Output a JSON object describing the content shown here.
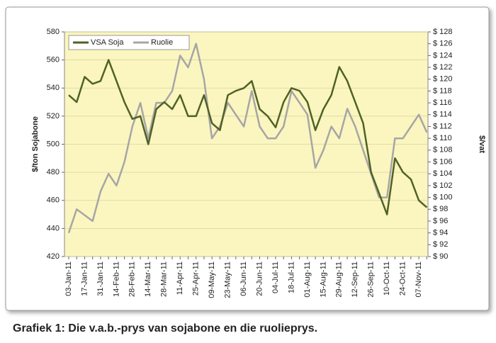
{
  "chart_data": {
    "type": "line",
    "caption": "Grafiek 1: Die v.a.b.-prys van sojabone en die ruolieprys.",
    "ylabel": "$/ton Sojabone",
    "y2label": "$/vat",
    "categories": [
      "03-Jan-11",
      null,
      "17-Jan-11",
      null,
      "31-Jan-11",
      null,
      "14-Feb-11",
      null,
      "28-Feb-11",
      null,
      "14-Mar-11",
      null,
      "28-Mar-11",
      null,
      "11-Apr-11",
      null,
      "25-Apr-11",
      null,
      "09-May-11",
      null,
      "23-May-11",
      null,
      "06-Jun-11",
      null,
      "20-Jun-11",
      null,
      "04-Jul-11",
      null,
      "18-Jul-11",
      null,
      "01-Aug-11",
      null,
      "15-Aug-11",
      null,
      "29-Aug-11",
      null,
      "12-Sep-11",
      null,
      "26-Sep-11",
      null,
      "10-Oct-11",
      null,
      "24-Oct-11",
      null,
      "07-Nov-11",
      null
    ],
    "series": [
      {
        "name": "VSA Soja",
        "color": "#4f6228",
        "values": [
          535,
          530,
          548,
          543,
          545,
          560,
          545,
          530,
          518,
          520,
          500,
          525,
          530,
          525,
          535,
          520,
          520,
          535,
          515,
          510,
          535,
          538,
          540,
          545,
          525,
          520,
          512,
          530,
          540,
          538,
          530,
          510,
          525,
          535,
          555,
          545,
          530,
          515,
          480,
          465,
          450,
          490,
          480,
          475,
          460,
          455
        ]
      },
      {
        "name": "Ruolie",
        "color": "#a6a6a6",
        "axis": "y2",
        "values": [
          94,
          98,
          97,
          96,
          101,
          104,
          102,
          106,
          112,
          116,
          110,
          116,
          116,
          118,
          124,
          122,
          126,
          120,
          110,
          112,
          116,
          114,
          112,
          118,
          112,
          110,
          110,
          112,
          118,
          116,
          114,
          105,
          108,
          112,
          110,
          115,
          112,
          108,
          104,
          100,
          100,
          110,
          110,
          112,
          114,
          111
        ]
      }
    ],
    "ylim": [
      420,
      580
    ],
    "yticks": [
      420,
      440,
      460,
      480,
      500,
      520,
      540,
      560,
      580
    ],
    "y2lim": [
      90,
      128
    ],
    "y2ticks": [
      {
        "value": 90,
        "label": "$ 90"
      },
      {
        "value": 92,
        "label": "$ 92"
      },
      {
        "value": 94,
        "label": "$ 94"
      },
      {
        "value": 96,
        "label": "$ 96"
      },
      {
        "value": 98,
        "label": "$ 98"
      },
      {
        "value": 100,
        "label": "$ 100"
      },
      {
        "value": 102,
        "label": "$ 102"
      },
      {
        "value": 104,
        "label": "$ 104"
      },
      {
        "value": 106,
        "label": "$ 106"
      },
      {
        "value": 108,
        "label": "$ 108"
      },
      {
        "value": 110,
        "label": "$ 110"
      },
      {
        "value": 112,
        "label": "$ 112"
      },
      {
        "value": 114,
        "label": "$ 114"
      },
      {
        "value": 116,
        "label": "$ 116"
      },
      {
        "value": 118,
        "label": "$ 118"
      },
      {
        "value": 120,
        "label": "$ 120"
      },
      {
        "value": 122,
        "label": "$ 122"
      },
      {
        "value": 124,
        "label": "$ 124"
      },
      {
        "value": 126,
        "label": "$ 126"
      },
      {
        "value": 128,
        "label": "$ 128"
      }
    ],
    "grid": true,
    "legend": "top-left",
    "plot_background": "#fbf5bf"
  }
}
